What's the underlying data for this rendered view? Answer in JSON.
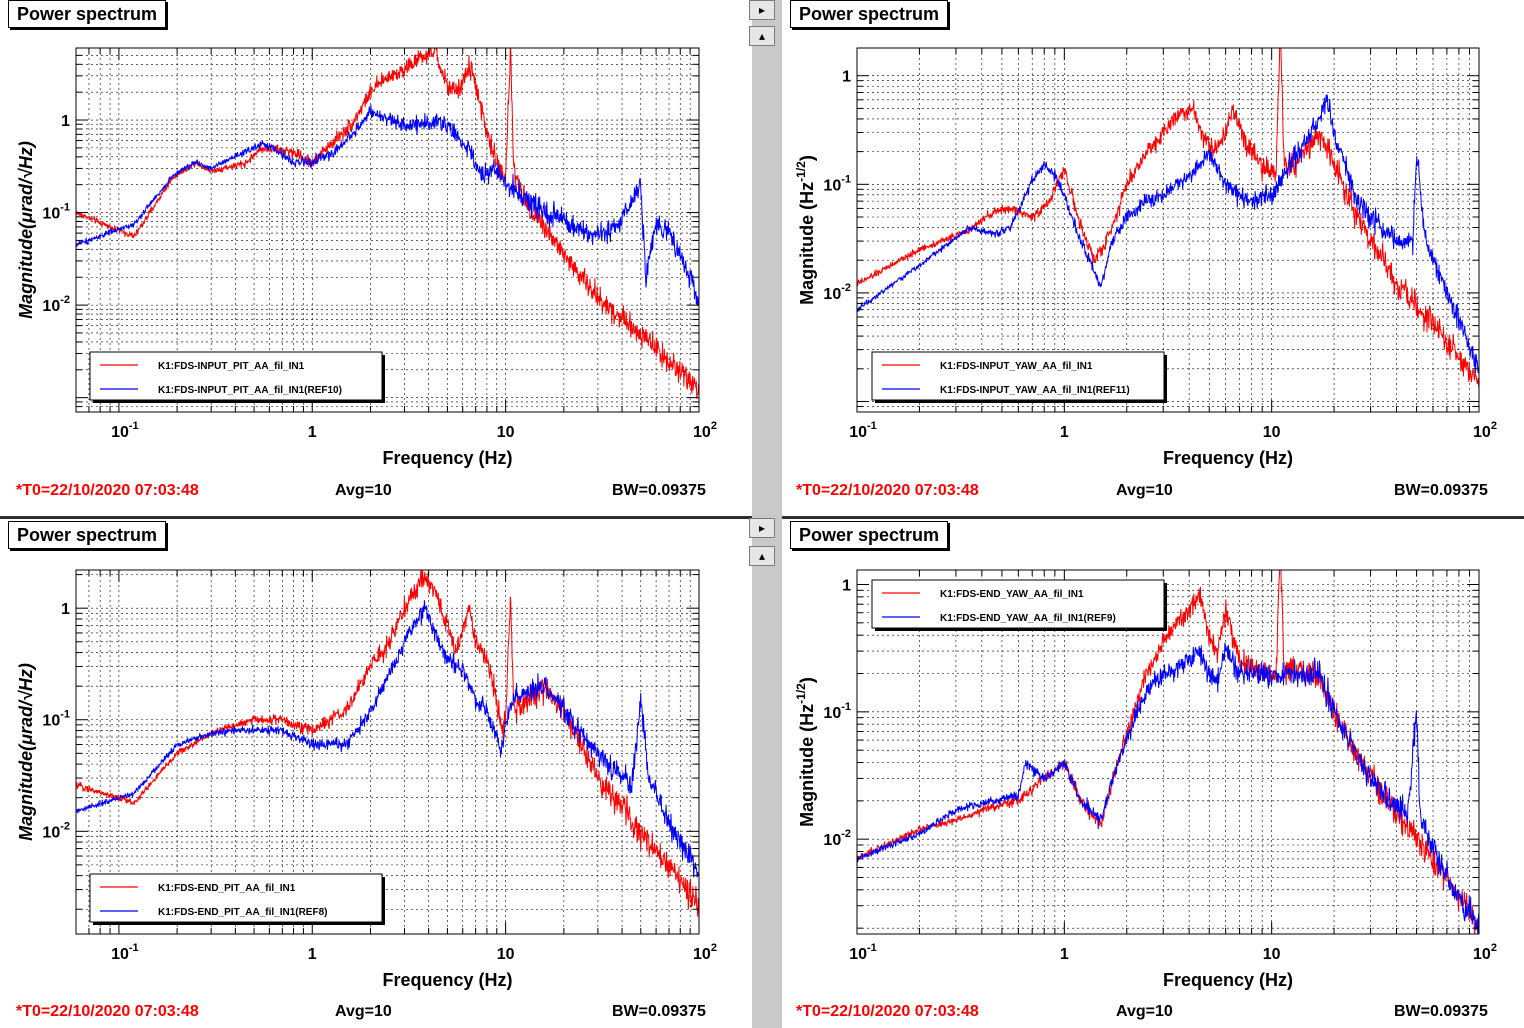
{
  "panels": [
    {
      "tab_label": "Power spectrum",
      "footer": {
        "t0": "*T0=22/10/2020 07:03:48",
        "avg": "Avg=10",
        "bw": "BW=0.09375"
      },
      "chart_data": {
        "type": "line",
        "xlabel": "Frequency (Hz)",
        "ylabel": "Magnitude(μrad/√Hz)",
        "xscale": "log",
        "yscale": "log",
        "xlim": [
          0.06,
          100
        ],
        "ylim": [
          0.0007,
          6
        ],
        "xticks": [
          {
            "v": 0.1,
            "m": "10",
            "e": "-1"
          },
          {
            "v": 1,
            "m": "1",
            "e": ""
          },
          {
            "v": 10,
            "m": "10",
            "e": ""
          },
          {
            "v": 100,
            "m": "10",
            "e": "2"
          }
        ],
        "yticks": [
          {
            "v": 0.01,
            "m": "10",
            "e": "-2"
          },
          {
            "v": 0.1,
            "m": "10",
            "e": "-1"
          },
          {
            "v": 1,
            "m": "1",
            "e": ""
          }
        ],
        "grid": true,
        "legend_position": "bottom-left",
        "series": [
          {
            "name": "K1:FDS-INPUT_PIT_AA_fil_IN1",
            "color": "#ff0000",
            "x": [
              0.06,
              0.12,
              0.19,
              0.25,
              0.3,
              0.45,
              0.55,
              0.8,
              1.0,
              1.3,
              1.6,
              2.0,
              2.5,
              3.0,
              3.5,
              4.0,
              4.3,
              4.7,
              5.2,
              5.8,
              6.5,
              7.0,
              8.0,
              9.0,
              10.0,
              10.6,
              11.0,
              11.5,
              13,
              16,
              20,
              30,
              50,
              70,
              100
            ],
            "y": [
              0.1,
              0.055,
              0.24,
              0.35,
              0.28,
              0.34,
              0.5,
              0.45,
              0.35,
              0.6,
              0.9,
              2.0,
              3.0,
              3.5,
              4.5,
              5.0,
              5.8,
              3.2,
              2.0,
              2.2,
              3.8,
              2.5,
              0.7,
              0.35,
              0.25,
              6.0,
              0.3,
              0.2,
              0.12,
              0.07,
              0.035,
              0.012,
              0.005,
              0.0025,
              0.0012
            ],
            "noise": 0.28
          },
          {
            "name": "K1:FDS-INPUT_PIT_AA_fil_IN1(REF10)",
            "color": "#0000ff",
            "x": [
              0.06,
              0.12,
              0.19,
              0.25,
              0.3,
              0.45,
              0.55,
              0.62,
              0.8,
              1.0,
              1.3,
              1.6,
              2.0,
              2.5,
              3.0,
              3.5,
              4.0,
              4.5,
              5.5,
              6.5,
              7.5,
              9.0,
              10.0,
              11.0,
              13,
              16,
              20,
              28,
              35,
              45,
              50,
              53,
              60,
              70,
              90,
              100
            ],
            "y": [
              0.045,
              0.075,
              0.25,
              0.35,
              0.3,
              0.45,
              0.55,
              0.5,
              0.35,
              0.35,
              0.45,
              0.7,
              1.2,
              1.0,
              0.9,
              0.9,
              0.95,
              1.0,
              0.7,
              0.45,
              0.25,
              0.3,
              0.2,
              0.18,
              0.14,
              0.1,
              0.08,
              0.055,
              0.06,
              0.13,
              0.2,
              0.02,
              0.08,
              0.06,
              0.02,
              0.01
            ],
            "noise": 0.25
          }
        ]
      }
    },
    {
      "tab_label": "Power spectrum",
      "footer": {
        "t0": "*T0=22/10/2020 07:03:48",
        "avg": "Avg=10",
        "bw": "BW=0.09375"
      },
      "chart_data": {
        "type": "line",
        "xlabel": "Frequency (Hz)",
        "ylabel": "Magnitude (Hz^-1/2)",
        "xscale": "log",
        "yscale": "log",
        "xlim": [
          0.1,
          100
        ],
        "ylim": [
          0.0008,
          1.8
        ],
        "xticks": [
          {
            "v": 0.1,
            "m": "10",
            "e": "-1"
          },
          {
            "v": 1,
            "m": "1",
            "e": ""
          },
          {
            "v": 10,
            "m": "10",
            "e": ""
          },
          {
            "v": 100,
            "m": "10",
            "e": "2"
          }
        ],
        "yticks": [
          {
            "v": 0.01,
            "m": "10",
            "e": "-2"
          },
          {
            "v": 0.1,
            "m": "10",
            "e": "-1"
          },
          {
            "v": 1,
            "m": "1",
            "e": ""
          }
        ],
        "grid": true,
        "legend_position": "bottom-left",
        "series": [
          {
            "name": "K1:FDS-INPUT_YAW_AA_fil_IN1",
            "color": "#ff0000",
            "x": [
              0.1,
              0.2,
              0.35,
              0.45,
              0.55,
              0.7,
              0.85,
              1.0,
              1.2,
              1.4,
              1.6,
              2.0,
              2.5,
              3.0,
              3.5,
              4.2,
              4.8,
              5.5,
              6.5,
              7.5,
              9.0,
              10.5,
              11.0,
              11.5,
              13,
              17,
              20,
              25,
              30,
              40,
              60,
              100
            ],
            "y": [
              0.012,
              0.025,
              0.038,
              0.055,
              0.06,
              0.05,
              0.07,
              0.14,
              0.04,
              0.02,
              0.03,
              0.1,
              0.2,
              0.3,
              0.45,
              0.5,
              0.25,
              0.2,
              0.5,
              0.25,
              0.15,
              0.12,
              3.0,
              0.15,
              0.15,
              0.3,
              0.15,
              0.06,
              0.03,
              0.012,
              0.005,
              0.0015
            ],
            "noise": 0.25
          },
          {
            "name": "K1:FDS-INPUT_YAW_AA_fil_IN1(REF11)",
            "color": "#0000ff",
            "x": [
              0.1,
              0.2,
              0.35,
              0.45,
              0.55,
              0.7,
              0.8,
              0.9,
              1.0,
              1.2,
              1.5,
              1.7,
              2.0,
              2.5,
              3.0,
              4.0,
              5.0,
              6.0,
              7.5,
              10.0,
              13,
              17,
              18.5,
              20,
              25,
              30,
              40,
              48,
              50,
              55,
              70,
              100
            ],
            "y": [
              0.007,
              0.018,
              0.04,
              0.035,
              0.04,
              0.11,
              0.15,
              0.12,
              0.08,
              0.03,
              0.011,
              0.03,
              0.05,
              0.07,
              0.08,
              0.12,
              0.2,
              0.1,
              0.07,
              0.08,
              0.18,
              0.4,
              0.65,
              0.3,
              0.08,
              0.05,
              0.03,
              0.03,
              0.2,
              0.03,
              0.01,
              0.002
            ],
            "noise": 0.22
          }
        ]
      }
    },
    {
      "tab_label": "Power spectrum",
      "footer": {
        "t0": "*T0=22/10/2020 07:03:48",
        "avg": "Avg=10",
        "bw": "BW=0.09375"
      },
      "chart_data": {
        "type": "line",
        "xlabel": "Frequency (Hz)",
        "ylabel": "Magnitude(μrad/√Hz)",
        "xscale": "log",
        "yscale": "log",
        "xlim": [
          0.06,
          100
        ],
        "ylim": [
          0.0012,
          2.2
        ],
        "xticks": [
          {
            "v": 0.1,
            "m": "10",
            "e": "-1"
          },
          {
            "v": 1,
            "m": "1",
            "e": ""
          },
          {
            "v": 10,
            "m": "10",
            "e": ""
          },
          {
            "v": 100,
            "m": "10",
            "e": "2"
          }
        ],
        "yticks": [
          {
            "v": 0.01,
            "m": "10",
            "e": "-2"
          },
          {
            "v": 0.1,
            "m": "10",
            "e": "-1"
          },
          {
            "v": 1,
            "m": "1",
            "e": ""
          }
        ],
        "grid": true,
        "legend_position": "bottom-left",
        "series": [
          {
            "name": "K1:FDS-END_PIT_AA_fil_IN1",
            "color": "#ff0000",
            "x": [
              0.06,
              0.12,
              0.2,
              0.3,
              0.4,
              0.5,
              0.7,
              1.0,
              1.5,
              2.0,
              2.5,
              3.0,
              3.5,
              3.8,
              4.5,
              5.0,
              5.5,
              6.5,
              7.0,
              8.0,
              9.0,
              9.5,
              10.0,
              10.6,
              11.0,
              13,
              16,
              20,
              30,
              50,
              70,
              100
            ],
            "y": [
              0.026,
              0.018,
              0.05,
              0.075,
              0.09,
              0.1,
              0.1,
              0.08,
              0.12,
              0.3,
              0.5,
              1.0,
              1.5,
              2.0,
              1.2,
              0.7,
              0.4,
              1.0,
              0.5,
              0.35,
              0.15,
              0.08,
              0.1,
              1.5,
              0.12,
              0.15,
              0.2,
              0.12,
              0.03,
              0.01,
              0.005,
              0.002
            ],
            "noise": 0.25
          },
          {
            "name": "K1:FDS-END_PIT_AA_fil_IN1(REF8)",
            "color": "#0000ff",
            "x": [
              0.06,
              0.12,
              0.2,
              0.3,
              0.4,
              0.5,
              0.7,
              1.0,
              1.5,
              2.0,
              2.5,
              3.0,
              3.5,
              3.8,
              4.5,
              5.0,
              6.0,
              7.0,
              8.0,
              9.0,
              9.6,
              10.0,
              11.0,
              13,
              16,
              20,
              30,
              45,
              50,
              55,
              70,
              100
            ],
            "y": [
              0.015,
              0.022,
              0.06,
              0.075,
              0.08,
              0.08,
              0.08,
              0.06,
              0.06,
              0.12,
              0.25,
              0.5,
              0.8,
              1.0,
              0.5,
              0.35,
              0.3,
              0.15,
              0.12,
              0.07,
              0.05,
              0.1,
              0.15,
              0.18,
              0.2,
              0.12,
              0.05,
              0.025,
              0.15,
              0.03,
              0.012,
              0.004
            ],
            "noise": 0.22
          }
        ]
      }
    },
    {
      "tab_label": "Power spectrum",
      "footer": {
        "t0": "*T0=22/10/2020 07:03:48",
        "avg": "Avg=10",
        "bw": "BW=0.09375"
      },
      "chart_data": {
        "type": "line",
        "xlabel": "Frequency (Hz)",
        "ylabel": "Magnitude (Hz^-1/2)",
        "xscale": "log",
        "yscale": "log",
        "xlim": [
          0.1,
          100
        ],
        "ylim": [
          0.0018,
          1.3
        ],
        "xticks": [
          {
            "v": 0.1,
            "m": "10",
            "e": "-1"
          },
          {
            "v": 1,
            "m": "1",
            "e": ""
          },
          {
            "v": 10,
            "m": "10",
            "e": ""
          },
          {
            "v": 100,
            "m": "10",
            "e": "2"
          }
        ],
        "yticks": [
          {
            "v": 0.01,
            "m": "10",
            "e": "-2"
          },
          {
            "v": 0.1,
            "m": "10",
            "e": "-1"
          },
          {
            "v": 1,
            "m": "1",
            "e": ""
          }
        ],
        "grid": true,
        "legend_position": "top-left",
        "series": [
          {
            "name": "K1:FDS-END_YAW_AA_fil_IN1",
            "color": "#ff0000",
            "x": [
              0.1,
              0.2,
              0.3,
              0.45,
              0.6,
              0.8,
              1.0,
              1.2,
              1.5,
              1.8,
              2.5,
              3.0,
              3.5,
              4.5,
              5.0,
              5.5,
              6.0,
              7.0,
              9.0,
              10.5,
              11.0,
              11.5,
              13,
              15,
              17,
              20,
              30,
              50,
              70,
              100
            ],
            "y": [
              0.007,
              0.012,
              0.014,
              0.018,
              0.02,
              0.03,
              0.04,
              0.02,
              0.013,
              0.04,
              0.2,
              0.35,
              0.5,
              0.8,
              0.4,
              0.3,
              0.6,
              0.25,
              0.2,
              0.2,
              2.0,
              0.2,
              0.22,
              0.2,
              0.18,
              0.1,
              0.03,
              0.01,
              0.005,
              0.002
            ],
            "noise": 0.22
          },
          {
            "name": "K1:FDS-END_YAW_AA_fil_IN1(REF9)",
            "color": "#0000ff",
            "x": [
              0.1,
              0.2,
              0.3,
              0.45,
              0.6,
              0.65,
              0.8,
              1.0,
              1.2,
              1.5,
              1.8,
              2.5,
              3.0,
              3.5,
              4.5,
              5.0,
              5.5,
              6.0,
              7.0,
              9.0,
              10.0,
              13,
              17,
              20,
              30,
              45,
              50,
              52,
              60,
              70,
              100
            ],
            "y": [
              0.007,
              0.011,
              0.017,
              0.02,
              0.022,
              0.04,
              0.03,
              0.04,
              0.02,
              0.014,
              0.04,
              0.15,
              0.2,
              0.22,
              0.3,
              0.2,
              0.18,
              0.3,
              0.2,
              0.2,
              0.2,
              0.2,
              0.2,
              0.1,
              0.03,
              0.015,
              0.1,
              0.015,
              0.008,
              0.005,
              0.002
            ],
            "noise": 0.22
          }
        ]
      }
    }
  ],
  "nav": {
    "right_arrow": "▸",
    "up_arrow": "▴"
  }
}
